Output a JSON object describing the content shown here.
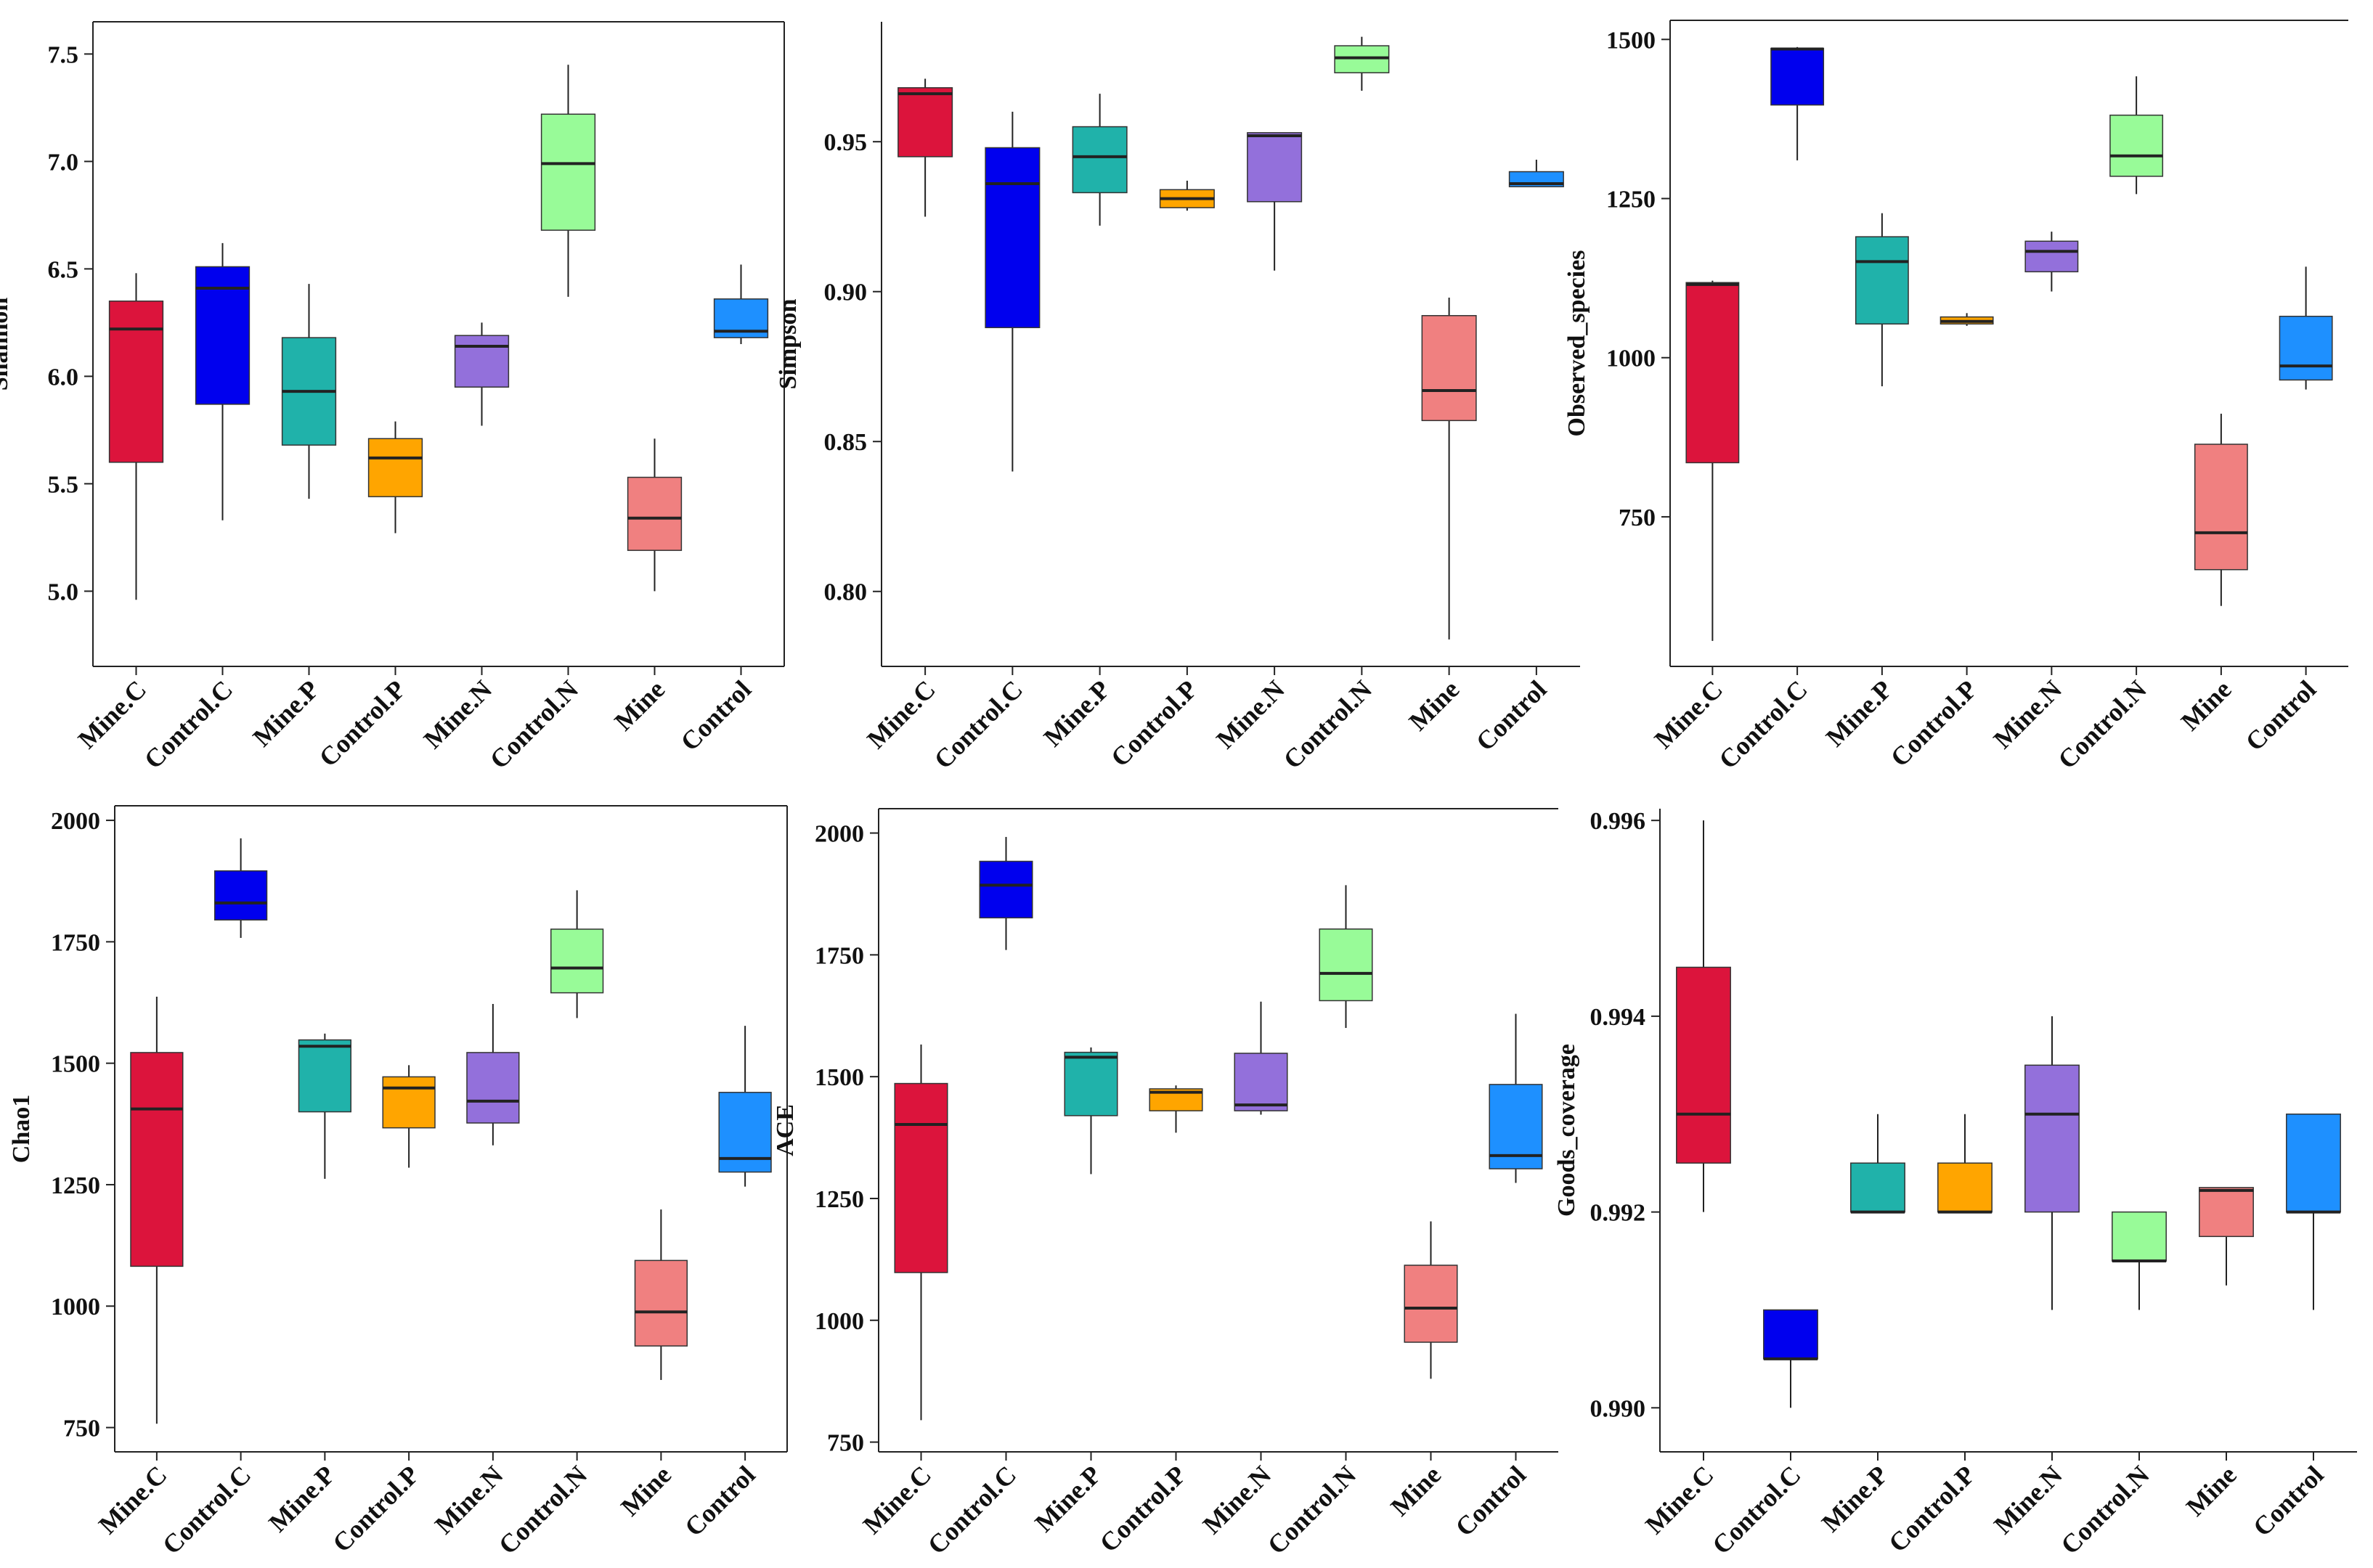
{
  "chart_data": [
    {
      "type": "box",
      "ylabel": "Shannon",
      "ylim": [
        4.65,
        7.65
      ],
      "yticks": [
        5.0,
        5.5,
        6.0,
        6.5,
        7.0,
        7.5
      ],
      "ytick_labels": [
        "5.0",
        "5.5",
        "6.0",
        "6.5",
        "7.0",
        "7.5"
      ],
      "categories": [
        "Mine.C",
        "Control.C",
        "Mine.P",
        "Control.P",
        "Mine.N",
        "Control.N",
        "Mine",
        "Control"
      ],
      "boxes": [
        {
          "min": 4.96,
          "q1": 5.6,
          "median": 6.22,
          "q3": 6.35,
          "max": 6.48
        },
        {
          "min": 5.33,
          "q1": 5.87,
          "median": 6.41,
          "q3": 6.51,
          "max": 6.62
        },
        {
          "min": 5.43,
          "q1": 5.68,
          "median": 5.93,
          "q3": 6.18,
          "max": 6.43
        },
        {
          "min": 5.27,
          "q1": 5.44,
          "median": 5.62,
          "q3": 5.71,
          "max": 5.79
        },
        {
          "min": 5.77,
          "q1": 5.95,
          "median": 6.14,
          "q3": 6.19,
          "max": 6.25
        },
        {
          "min": 6.37,
          "q1": 6.68,
          "median": 6.99,
          "q3": 7.22,
          "max": 7.45
        },
        {
          "min": 5.0,
          "q1": 5.19,
          "median": 5.34,
          "q3": 5.53,
          "max": 5.71
        },
        {
          "min": 6.15,
          "q1": 6.18,
          "median": 6.21,
          "q3": 6.36,
          "max": 6.52
        }
      ]
    },
    {
      "type": "box",
      "ylabel": "Simpson",
      "ylim": [
        0.775,
        0.99
      ],
      "yticks": [
        0.8,
        0.85,
        0.9,
        0.95
      ],
      "ytick_labels": [
        "0.80",
        "0.85",
        "0.90",
        "0.95"
      ],
      "categories": [
        "Mine.C",
        "Control.C",
        "Mine.P",
        "Control.P",
        "Mine.N",
        "Control.N",
        "Mine",
        "Control"
      ],
      "boxes": [
        {
          "min": 0.925,
          "q1": 0.945,
          "median": 0.966,
          "q3": 0.968,
          "max": 0.971
        },
        {
          "min": 0.84,
          "q1": 0.888,
          "median": 0.936,
          "q3": 0.948,
          "max": 0.96
        },
        {
          "min": 0.922,
          "q1": 0.933,
          "median": 0.945,
          "q3": 0.955,
          "max": 0.966
        },
        {
          "min": 0.927,
          "q1": 0.928,
          "median": 0.931,
          "q3": 0.934,
          "max": 0.937
        },
        {
          "min": 0.907,
          "q1": 0.93,
          "median": 0.952,
          "q3": 0.953,
          "max": 0.953
        },
        {
          "min": 0.967,
          "q1": 0.973,
          "median": 0.978,
          "q3": 0.982,
          "max": 0.985
        },
        {
          "min": 0.784,
          "q1": 0.857,
          "median": 0.867,
          "q3": 0.892,
          "max": 0.898
        },
        {
          "min": 0.935,
          "q1": 0.935,
          "median": 0.936,
          "q3": 0.94,
          "max": 0.944
        }
      ]
    },
    {
      "type": "box",
      "ylabel": "Observed_species",
      "ylim": [
        515,
        1530
      ],
      "yticks": [
        750,
        1000,
        1250,
        1500
      ],
      "ytick_labels": [
        "750",
        "1000",
        "1250",
        "1500"
      ],
      "categories": [
        "Mine.C",
        "Control.C",
        "Mine.P",
        "Control.P",
        "Mine.N",
        "Control.N",
        "Mine",
        "Control"
      ],
      "boxes": [
        {
          "min": 555,
          "q1": 835,
          "median": 1115,
          "q3": 1118,
          "max": 1121
        },
        {
          "min": 1310,
          "q1": 1397,
          "median": 1485,
          "q3": 1486,
          "max": 1488
        },
        {
          "min": 955,
          "q1": 1053,
          "median": 1151,
          "q3": 1190,
          "max": 1227
        },
        {
          "min": 1050,
          "q1": 1053,
          "median": 1057,
          "q3": 1064,
          "max": 1070
        },
        {
          "min": 1104,
          "q1": 1135,
          "median": 1167,
          "q3": 1183,
          "max": 1198
        },
        {
          "min": 1257,
          "q1": 1285,
          "median": 1317,
          "q3": 1381,
          "max": 1442
        },
        {
          "min": 610,
          "q1": 667,
          "median": 725,
          "q3": 864,
          "max": 912
        },
        {
          "min": 950,
          "q1": 965,
          "median": 987,
          "q3": 1065,
          "max": 1143
        }
      ]
    },
    {
      "type": "box",
      "ylabel": "Chao1",
      "ylim": [
        700,
        2030
      ],
      "yticks": [
        750,
        1000,
        1250,
        1500,
        1750,
        2000
      ],
      "ytick_labels": [
        "750",
        "1000",
        "1250",
        "1500",
        "1750",
        "2000"
      ],
      "categories": [
        "Mine.C",
        "Control.C",
        "Mine.P",
        "Control.P",
        "Mine.N",
        "Control.N",
        "Mine",
        "Control"
      ],
      "boxes": [
        {
          "min": 758,
          "q1": 1082,
          "median": 1406,
          "q3": 1522,
          "max": 1637
        },
        {
          "min": 1758,
          "q1": 1795,
          "median": 1830,
          "q3": 1896,
          "max": 1963
        },
        {
          "min": 1262,
          "q1": 1400,
          "median": 1535,
          "q3": 1548,
          "max": 1561
        },
        {
          "min": 1285,
          "q1": 1367,
          "median": 1449,
          "q3": 1472,
          "max": 1496
        },
        {
          "min": 1331,
          "q1": 1377,
          "median": 1422,
          "q3": 1522,
          "max": 1622
        },
        {
          "min": 1593,
          "q1": 1645,
          "median": 1696,
          "q3": 1776,
          "max": 1856
        },
        {
          "min": 848,
          "q1": 918,
          "median": 988,
          "q3": 1094,
          "max": 1199
        },
        {
          "min": 1246,
          "q1": 1276,
          "median": 1304,
          "q3": 1440,
          "max": 1577
        }
      ]
    },
    {
      "type": "box",
      "ylabel": "ACE",
      "ylim": [
        730,
        2050
      ],
      "yticks": [
        750,
        1000,
        1250,
        1500,
        1750,
        2000
      ],
      "ytick_labels": [
        "750",
        "1000",
        "1250",
        "1500",
        "1750",
        "2000"
      ],
      "categories": [
        "Mine.C",
        "Control.C",
        "Mine.P",
        "Control.P",
        "Mine.N",
        "Control.N",
        "Mine",
        "Control"
      ],
      "boxes": [
        {
          "min": 795,
          "q1": 1098,
          "median": 1402,
          "q3": 1486,
          "max": 1566
        },
        {
          "min": 1760,
          "q1": 1826,
          "median": 1893,
          "q3": 1942,
          "max": 1992
        },
        {
          "min": 1300,
          "q1": 1420,
          "median": 1540,
          "q3": 1550,
          "max": 1560
        },
        {
          "min": 1385,
          "q1": 1430,
          "median": 1468,
          "q3": 1475,
          "max": 1482
        },
        {
          "min": 1422,
          "q1": 1430,
          "median": 1442,
          "q3": 1548,
          "max": 1654
        },
        {
          "min": 1600,
          "q1": 1656,
          "median": 1712,
          "q3": 1803,
          "max": 1893
        },
        {
          "min": 880,
          "q1": 955,
          "median": 1025,
          "q3": 1113,
          "max": 1203
        },
        {
          "min": 1282,
          "q1": 1311,
          "median": 1338,
          "q3": 1484,
          "max": 1629
        }
      ]
    },
    {
      "type": "box",
      "ylabel": "Goods_coverage",
      "ylim": [
        0.98955,
        0.99612
      ],
      "yticks": [
        0.99,
        0.992,
        0.994,
        0.996
      ],
      "ytick_labels": [
        "0.990",
        "0.992",
        "0.994",
        "0.996"
      ],
      "categories": [
        "Mine.C",
        "Control.C",
        "Mine.P",
        "Control.P",
        "Mine.N",
        "Control.N",
        "Mine",
        "Control"
      ],
      "boxes": [
        {
          "min": 0.992,
          "q1": 0.9925,
          "median": 0.993,
          "q3": 0.9945,
          "max": 0.996
        },
        {
          "min": 0.99,
          "q1": 0.9905,
          "median": 0.9905,
          "q3": 0.991,
          "max": 0.991
        },
        {
          "min": 0.992,
          "q1": 0.992,
          "median": 0.992,
          "q3": 0.9925,
          "max": 0.993
        },
        {
          "min": 0.992,
          "q1": 0.992,
          "median": 0.992,
          "q3": 0.9925,
          "max": 0.993
        },
        {
          "min": 0.991,
          "q1": 0.992,
          "median": 0.993,
          "q3": 0.9935,
          "max": 0.994
        },
        {
          "min": 0.991,
          "q1": 0.9915,
          "median": 0.9915,
          "q3": 0.992,
          "max": 0.992
        },
        {
          "min": 0.99125,
          "q1": 0.99175,
          "median": 0.99222,
          "q3": 0.99225,
          "max": 0.99225
        },
        {
          "min": 0.991,
          "q1": 0.992,
          "median": 0.992,
          "q3": 0.993,
          "max": 0.993
        }
      ]
    }
  ],
  "colors": {
    "Mine.C": "#dc143c",
    "Control.C": "#0000ee",
    "Mine.P": "#20b2aa",
    "Control.P": "#ffa500",
    "Mine.N": "#9370db",
    "Control.N": "#98fb98",
    "Mine": "#f08080",
    "Control": "#1e90ff"
  }
}
